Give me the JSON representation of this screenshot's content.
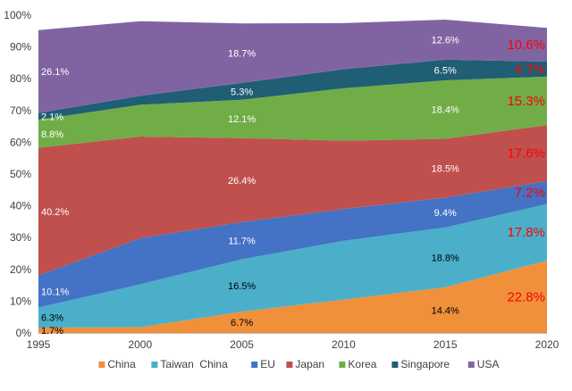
{
  "chart_data": {
    "type": "area",
    "stacked": true,
    "x": [
      1995,
      2000,
      2005,
      2010,
      2015,
      2020
    ],
    "x_tick_labels": [
      "1995",
      "2000",
      "2005",
      "2010",
      "2015",
      "2020"
    ],
    "ylim": [
      0,
      100
    ],
    "y_tick_labels": [
      "0%",
      "10%",
      "20%",
      "30%",
      "40%",
      "50%",
      "60%",
      "70%",
      "80%",
      "90%",
      "100%"
    ],
    "legend_position": "bottom",
    "grid": false,
    "series": [
      {
        "name": "China",
        "color": "#F0903A",
        "values": [
          1.7,
          1.8,
          6.7,
          10.5,
          14.4,
          22.8
        ]
      },
      {
        "name": "Taiwan  China",
        "color": "#4BAFC9",
        "values": [
          6.3,
          13.5,
          16.5,
          18.5,
          18.8,
          17.8
        ]
      },
      {
        "name": "EU",
        "color": "#4472C4",
        "values": [
          10.1,
          14.5,
          11.7,
          10,
          9.4,
          7.2
        ]
      },
      {
        "name": "Japan",
        "color": "#C0504D",
        "values": [
          40.2,
          32,
          26.4,
          21.5,
          18.5,
          17.6
        ]
      },
      {
        "name": "Korea",
        "color": "#70AD47",
        "values": [
          8.8,
          10,
          12.1,
          16.5,
          18.4,
          15.3
        ]
      },
      {
        "name": "Singapore",
        "color": "#1F5E75",
        "values": [
          2.1,
          2.8,
          5.3,
          6,
          6.5,
          4.7
        ]
      },
      {
        "name": "USA",
        "color": "#8064A2",
        "values": [
          26.1,
          23.5,
          18.7,
          14.5,
          12.6,
          10.6
        ]
      }
    ],
    "data_labels": [
      {
        "text": "1.7%",
        "x": 1995,
        "series": "China",
        "color": "#000000",
        "red": false
      },
      {
        "text": "6.3%",
        "x": 1995,
        "series": "Taiwan  China",
        "color": "#000000",
        "red": false
      },
      {
        "text": "10.1%",
        "x": 1995,
        "series": "EU",
        "color": "#ffffff",
        "red": false
      },
      {
        "text": "40.2%",
        "x": 1995,
        "series": "Japan",
        "color": "#ffffff",
        "red": false
      },
      {
        "text": "8.8%",
        "x": 1995,
        "series": "Korea",
        "color": "#ffffff",
        "red": false
      },
      {
        "text": "2.1%",
        "x": 1995,
        "series": "Singapore",
        "color": "#ffffff",
        "red": false
      },
      {
        "text": "26.1%",
        "x": 1995,
        "series": "USA",
        "color": "#ffffff",
        "red": false
      },
      {
        "text": "6.7%",
        "x": 2005,
        "series": "China",
        "color": "#000000",
        "red": false
      },
      {
        "text": "16.5%",
        "x": 2005,
        "series": "Taiwan  China",
        "color": "#000000",
        "red": false
      },
      {
        "text": "11.7%",
        "x": 2005,
        "series": "EU",
        "color": "#ffffff",
        "red": false
      },
      {
        "text": "26.4%",
        "x": 2005,
        "series": "Japan",
        "color": "#ffffff",
        "red": false
      },
      {
        "text": "12.1%",
        "x": 2005,
        "series": "Korea",
        "color": "#ffffff",
        "red": false
      },
      {
        "text": "5.3%",
        "x": 2005,
        "series": "Singapore",
        "color": "#ffffff",
        "red": false
      },
      {
        "text": "18.7%",
        "x": 2005,
        "series": "USA",
        "color": "#ffffff",
        "red": false
      },
      {
        "text": "14.4%",
        "x": 2015,
        "series": "China",
        "color": "#000000",
        "red": false
      },
      {
        "text": "18.8%",
        "x": 2015,
        "series": "Taiwan  China",
        "color": "#000000",
        "red": false
      },
      {
        "text": "9.4%",
        "x": 2015,
        "series": "EU",
        "color": "#ffffff",
        "red": false
      },
      {
        "text": "18.5%",
        "x": 2015,
        "series": "Japan",
        "color": "#ffffff",
        "red": false
      },
      {
        "text": "18.4%",
        "x": 2015,
        "series": "Korea",
        "color": "#ffffff",
        "red": false
      },
      {
        "text": "6.5%",
        "x": 2015,
        "series": "Singapore",
        "color": "#ffffff",
        "red": false
      },
      {
        "text": "12.6%",
        "x": 2015,
        "series": "USA",
        "color": "#ffffff",
        "red": false
      },
      {
        "text": "22.8%",
        "x": 2020,
        "series": "China",
        "color": "#FF0000",
        "red": true
      },
      {
        "text": "17.8%",
        "x": 2020,
        "series": "Taiwan  China",
        "color": "#FF0000",
        "red": true
      },
      {
        "text": "7.2%",
        "x": 2020,
        "series": "EU",
        "color": "#FF0000",
        "red": true
      },
      {
        "text": "17.6%",
        "x": 2020,
        "series": "Japan",
        "color": "#FF0000",
        "red": true
      },
      {
        "text": "15.3%",
        "x": 2020,
        "series": "Korea",
        "color": "#FF0000",
        "red": true
      },
      {
        "text": "4.7%",
        "x": 2020,
        "series": "Singapore",
        "color": "#FF0000",
        "red": true
      },
      {
        "text": "10.6%",
        "x": 2020,
        "series": "USA",
        "color": "#FF0000",
        "red": true
      }
    ]
  }
}
